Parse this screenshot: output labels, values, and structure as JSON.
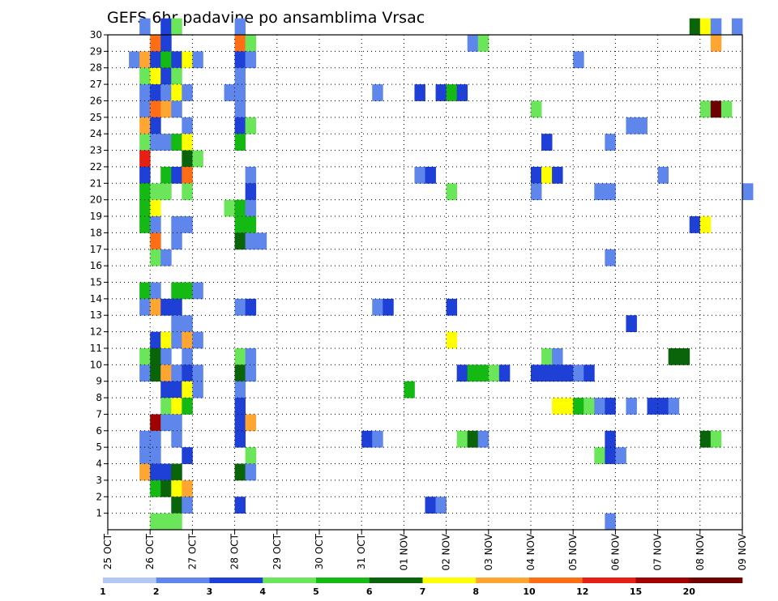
{
  "chart_data": {
    "type": "heatmap",
    "title": "GEFS 6hr padavine po ansamblima Vrsac",
    "x_tick_labels": [
      "25 OCT",
      "26 OCT",
      "27 OCT",
      "28 OCT",
      "29 OCT",
      "30 OCT",
      "31 OCT",
      "01 NOV",
      "02 NOV",
      "03 NOV",
      "04 NOV",
      "05 NOV",
      "06 NOV",
      "07 NOV",
      "08 NOV",
      "09 NOV"
    ],
    "y_tick_labels": [
      "1",
      "2",
      "3",
      "4",
      "5",
      "6",
      "7",
      "8",
      "9",
      "10",
      "11",
      "12",
      "13",
      "14",
      "15",
      "16",
      "17",
      "18",
      "19",
      "20",
      "21",
      "22",
      "23",
      "24",
      "25",
      "26",
      "27",
      "28",
      "29",
      "30"
    ],
    "xlim_steps": [
      0,
      60
    ],
    "ylim": [
      0,
      30
    ],
    "time_step_hours": 6,
    "grid": "dotted",
    "colorbar": {
      "labels": [
        "1",
        "2",
        "3",
        "4",
        "5",
        "6",
        "7",
        "8",
        "10",
        "12",
        "15",
        "20"
      ],
      "colors": [
        "#b4c8f5",
        "#5f87eb",
        "#1e40d7",
        "#6be65a",
        "#14b914",
        "#0a640a",
        "#ffff00",
        "#ffa532",
        "#ff6e14",
        "#e61e14",
        "#a00000",
        "#6e0000"
      ]
    },
    "cells": [
      [
        3,
        30,
        1
      ],
      [
        5,
        30,
        2
      ],
      [
        6,
        30,
        3
      ],
      [
        12,
        30,
        1
      ],
      [
        55,
        30,
        5
      ],
      [
        56,
        30,
        6
      ],
      [
        57,
        30,
        1
      ],
      [
        59,
        30,
        1
      ],
      [
        4,
        29,
        8
      ],
      [
        5,
        29,
        2
      ],
      [
        12,
        29,
        8
      ],
      [
        13,
        29,
        3
      ],
      [
        34,
        29,
        1
      ],
      [
        35,
        29,
        3
      ],
      [
        57,
        29,
        7
      ],
      [
        2,
        28,
        1
      ],
      [
        3,
        28,
        7
      ],
      [
        4,
        28,
        2
      ],
      [
        5,
        28,
        4
      ],
      [
        6,
        28,
        2
      ],
      [
        7,
        28,
        6
      ],
      [
        8,
        28,
        1
      ],
      [
        12,
        28,
        2
      ],
      [
        13,
        28,
        1
      ],
      [
        44,
        28,
        1
      ],
      [
        3,
        27,
        3
      ],
      [
        4,
        27,
        6
      ],
      [
        5,
        27,
        2
      ],
      [
        6,
        27,
        3
      ],
      [
        12,
        27,
        1
      ],
      [
        3,
        26,
        1
      ],
      [
        4,
        26,
        2
      ],
      [
        5,
        26,
        1
      ],
      [
        6,
        26,
        6
      ],
      [
        7,
        26,
        1
      ],
      [
        11,
        26,
        1
      ],
      [
        12,
        26,
        1
      ],
      [
        25,
        26,
        1
      ],
      [
        29,
        26,
        2
      ],
      [
        31,
        26,
        2
      ],
      [
        32,
        26,
        4
      ],
      [
        33,
        26,
        2
      ],
      [
        3,
        25,
        1
      ],
      [
        4,
        25,
        8
      ],
      [
        5,
        25,
        7
      ],
      [
        6,
        25,
        1
      ],
      [
        12,
        25,
        1
      ],
      [
        40,
        25,
        3
      ],
      [
        56,
        25,
        3
      ],
      [
        57,
        25,
        11
      ],
      [
        58,
        25,
        3
      ],
      [
        3,
        24,
        7
      ],
      [
        4,
        24,
        2
      ],
      [
        7,
        24,
        1
      ],
      [
        12,
        24,
        2
      ],
      [
        13,
        24,
        3
      ],
      [
        49,
        24,
        1
      ],
      [
        50,
        24,
        1
      ],
      [
        3,
        23,
        3
      ],
      [
        4,
        23,
        1
      ],
      [
        5,
        23,
        1
      ],
      [
        6,
        23,
        4
      ],
      [
        7,
        23,
        6
      ],
      [
        12,
        23,
        4
      ],
      [
        41,
        23,
        2
      ],
      [
        47,
        23,
        1
      ],
      [
        3,
        22,
        9
      ],
      [
        7,
        22,
        5
      ],
      [
        8,
        22,
        3
      ],
      [
        3,
        21,
        2
      ],
      [
        5,
        21,
        4
      ],
      [
        6,
        21,
        2
      ],
      [
        7,
        21,
        8
      ],
      [
        13,
        21,
        1
      ],
      [
        29,
        21,
        1
      ],
      [
        30,
        21,
        2
      ],
      [
        40,
        21,
        2
      ],
      [
        41,
        21,
        6
      ],
      [
        42,
        21,
        2
      ],
      [
        52,
        21,
        1
      ],
      [
        3,
        20,
        4
      ],
      [
        4,
        20,
        3
      ],
      [
        5,
        20,
        3
      ],
      [
        7,
        20,
        3
      ],
      [
        13,
        20,
        2
      ],
      [
        32,
        20,
        3
      ],
      [
        40,
        20,
        1
      ],
      [
        46,
        20,
        1
      ],
      [
        47,
        20,
        1
      ],
      [
        60,
        20,
        1
      ],
      [
        3,
        19,
        4
      ],
      [
        4,
        19,
        6
      ],
      [
        11,
        19,
        3
      ],
      [
        12,
        19,
        4
      ],
      [
        13,
        19,
        1
      ],
      [
        3,
        18,
        4
      ],
      [
        4,
        18,
        1
      ],
      [
        6,
        18,
        1
      ],
      [
        7,
        18,
        1
      ],
      [
        12,
        18,
        4
      ],
      [
        13,
        18,
        4
      ],
      [
        55,
        18,
        2
      ],
      [
        56,
        18,
        6
      ],
      [
        4,
        17,
        8
      ],
      [
        6,
        17,
        1
      ],
      [
        12,
        17,
        5
      ],
      [
        13,
        17,
        1
      ],
      [
        14,
        17,
        1
      ],
      [
        4,
        16,
        3
      ],
      [
        5,
        16,
        1
      ],
      [
        47,
        16,
        1
      ],
      [
        3,
        14,
        4
      ],
      [
        4,
        14,
        1
      ],
      [
        6,
        14,
        4
      ],
      [
        7,
        14,
        4
      ],
      [
        8,
        14,
        1
      ],
      [
        3,
        13,
        1
      ],
      [
        4,
        13,
        7
      ],
      [
        5,
        13,
        2
      ],
      [
        6,
        13,
        2
      ],
      [
        12,
        13,
        1
      ],
      [
        13,
        13,
        2
      ],
      [
        25,
        13,
        1
      ],
      [
        26,
        13,
        2
      ],
      [
        32,
        13,
        2
      ],
      [
        6,
        12,
        1
      ],
      [
        7,
        12,
        1
      ],
      [
        49,
        12,
        2
      ],
      [
        4,
        11,
        2
      ],
      [
        5,
        11,
        6
      ],
      [
        6,
        11,
        1
      ],
      [
        7,
        11,
        7
      ],
      [
        8,
        11,
        1
      ],
      [
        32,
        11,
        6
      ],
      [
        3,
        10,
        3
      ],
      [
        4,
        10,
        5
      ],
      [
        5,
        10,
        1
      ],
      [
        7,
        10,
        1
      ],
      [
        12,
        10,
        3
      ],
      [
        13,
        10,
        1
      ],
      [
        41,
        10,
        3
      ],
      [
        42,
        10,
        1
      ],
      [
        53,
        10,
        5
      ],
      [
        54,
        10,
        5
      ],
      [
        3,
        9,
        1
      ],
      [
        4,
        9,
        5
      ],
      [
        5,
        9,
        7
      ],
      [
        6,
        9,
        1
      ],
      [
        7,
        9,
        2
      ],
      [
        8,
        9,
        1
      ],
      [
        12,
        9,
        5
      ],
      [
        13,
        9,
        1
      ],
      [
        33,
        9,
        2
      ],
      [
        34,
        9,
        4
      ],
      [
        35,
        9,
        4
      ],
      [
        36,
        9,
        3
      ],
      [
        37,
        9,
        2
      ],
      [
        40,
        9,
        2
      ],
      [
        41,
        9,
        2
      ],
      [
        42,
        9,
        2
      ],
      [
        43,
        9,
        2
      ],
      [
        44,
        9,
        1
      ],
      [
        45,
        9,
        2
      ],
      [
        5,
        8,
        2
      ],
      [
        6,
        8,
        2
      ],
      [
        7,
        8,
        6
      ],
      [
        8,
        8,
        1
      ],
      [
        12,
        8,
        1
      ],
      [
        28,
        8,
        4
      ],
      [
        5,
        7,
        3
      ],
      [
        6,
        7,
        6
      ],
      [
        7,
        7,
        4
      ],
      [
        12,
        7,
        2
      ],
      [
        42,
        7,
        6
      ],
      [
        43,
        7,
        6
      ],
      [
        44,
        7,
        4
      ],
      [
        45,
        7,
        3
      ],
      [
        46,
        7,
        1
      ],
      [
        47,
        7,
        2
      ],
      [
        49,
        7,
        1
      ],
      [
        51,
        7,
        2
      ],
      [
        52,
        7,
        2
      ],
      [
        53,
        7,
        1
      ],
      [
        4,
        6,
        10
      ],
      [
        5,
        6,
        1
      ],
      [
        6,
        6,
        1
      ],
      [
        12,
        6,
        2
      ],
      [
        13,
        6,
        7
      ],
      [
        3,
        5,
        1
      ],
      [
        4,
        5,
        1
      ],
      [
        6,
        5,
        1
      ],
      [
        12,
        5,
        2
      ],
      [
        24,
        5,
        2
      ],
      [
        25,
        5,
        1
      ],
      [
        33,
        5,
        3
      ],
      [
        34,
        5,
        5
      ],
      [
        35,
        5,
        1
      ],
      [
        47,
        5,
        2
      ],
      [
        56,
        5,
        5
      ],
      [
        57,
        5,
        3
      ],
      [
        3,
        4,
        1
      ],
      [
        4,
        4,
        1
      ],
      [
        7,
        4,
        2
      ],
      [
        13,
        4,
        3
      ],
      [
        46,
        4,
        3
      ],
      [
        47,
        4,
        2
      ],
      [
        48,
        4,
        1
      ],
      [
        3,
        3,
        7
      ],
      [
        4,
        3,
        2
      ],
      [
        5,
        3,
        2
      ],
      [
        6,
        3,
        5
      ],
      [
        12,
        3,
        5
      ],
      [
        13,
        3,
        1
      ],
      [
        4,
        2,
        4
      ],
      [
        5,
        2,
        5
      ],
      [
        6,
        2,
        6
      ],
      [
        7,
        2,
        7
      ],
      [
        6,
        1,
        5
      ],
      [
        7,
        1,
        1
      ],
      [
        12,
        1,
        2
      ],
      [
        30,
        1,
        2
      ],
      [
        31,
        1,
        1
      ],
      [
        4,
        0,
        3
      ],
      [
        5,
        0,
        3
      ],
      [
        6,
        0,
        3
      ],
      [
        47,
        0,
        1
      ]
    ]
  }
}
